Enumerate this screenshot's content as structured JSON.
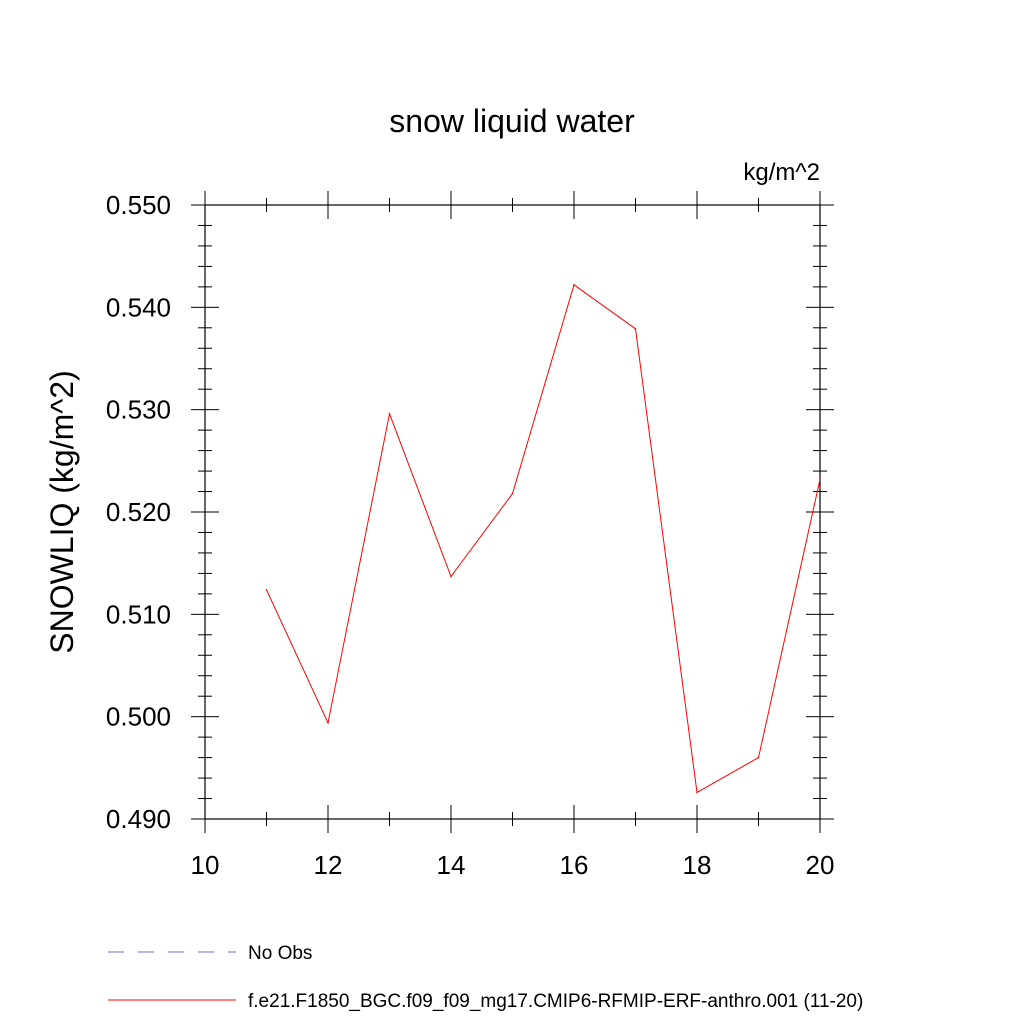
{
  "chart_data": {
    "type": "line",
    "title": "snow liquid water",
    "units": "kg/m^2",
    "xlabel": "",
    "ylabel": "SNOWLIQ  (kg/m^2)",
    "xlim": [
      10,
      20
    ],
    "ylim": [
      0.49,
      0.55
    ],
    "x_ticks": [
      10,
      12,
      14,
      16,
      18,
      20
    ],
    "x_tick_labels": [
      "10",
      "12",
      "14",
      "16",
      "18",
      "20"
    ],
    "y_ticks": [
      0.49,
      0.5,
      0.51,
      0.52,
      0.53,
      0.54,
      0.55
    ],
    "y_tick_labels": [
      "0.490",
      "0.500",
      "0.510",
      "0.520",
      "0.530",
      "0.540",
      "0.550"
    ],
    "grid": false,
    "legend_position": "bottom",
    "legend": [
      {
        "label": "No Obs",
        "color": "#7b68c8",
        "dash": "dashed"
      },
      {
        "label": "f.e21.F1850_BGC.f09_f09_mg17.CMIP6-RFMIP-ERF-anthro.001 (11-20)",
        "color": "#ff0000",
        "dash": "solid"
      }
    ],
    "series": [
      {
        "name": "f.e21.F1850_BGC.f09_f09_mg17.CMIP6-RFMIP-ERF-anthro.001 (11-20)",
        "color": "#ff0000",
        "x": [
          11,
          12,
          13,
          14,
          15,
          16,
          17,
          18,
          19,
          20
        ],
        "y": [
          0.5124,
          0.4994,
          0.5296,
          0.5137,
          0.5218,
          0.5422,
          0.5379,
          0.4926,
          0.496,
          0.5232
        ]
      }
    ]
  }
}
